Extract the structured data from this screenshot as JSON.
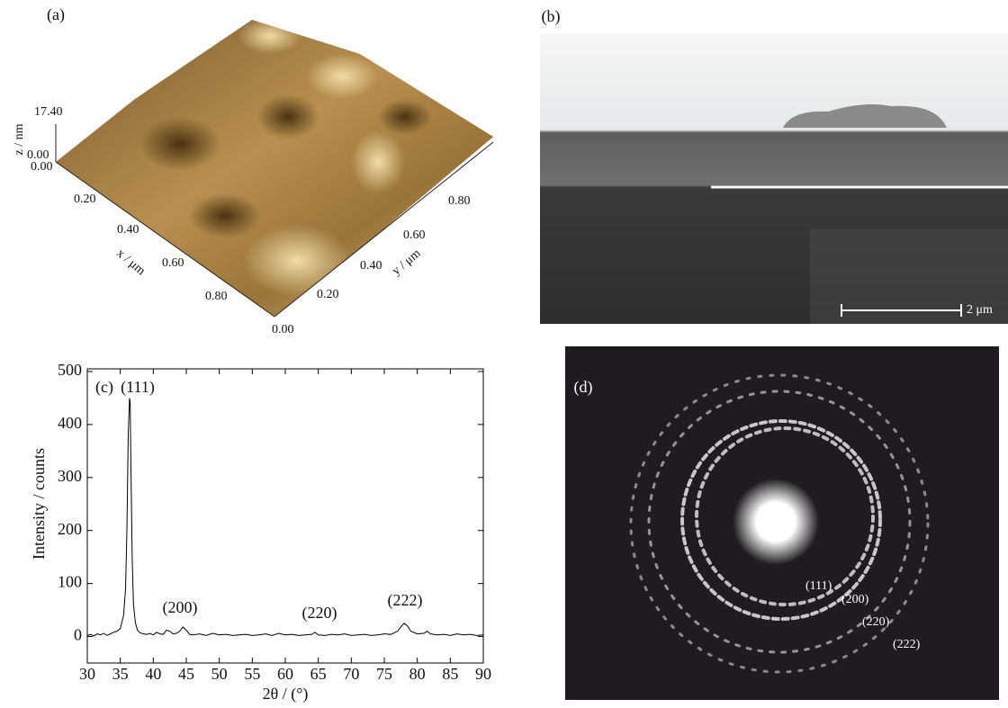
{
  "panel_a": {
    "label": "(a)",
    "z_axis": {
      "title": "z / nm",
      "ticks": [
        "17.40",
        "0.00"
      ]
    },
    "x_axis": {
      "title": "x / μm",
      "ticks": [
        "0.00",
        "0.20",
        "0.40",
        "0.60",
        "0.80"
      ]
    },
    "y_axis": {
      "title": "y / μm",
      "ticks": [
        "0.00",
        "0.20",
        "0.40",
        "0.60",
        "0.80"
      ]
    }
  },
  "panel_b": {
    "label": "(b)",
    "scale_bar": "2 μm"
  },
  "panel_d": {
    "label": "(d)",
    "rings": [
      "(111)",
      "(200)",
      "(220)",
      "(222)"
    ]
  },
  "chart_data": {
    "type": "line",
    "label": "(c)",
    "xlabel": "2θ / (°)",
    "ylabel": "Intensity / counts",
    "annotations": [
      "(111)",
      "(200)",
      "(220)",
      "(222)"
    ],
    "x": [
      30,
      30.5,
      31,
      31.5,
      32,
      32.5,
      33,
      33.5,
      34,
      34.5,
      35,
      35.5,
      35.8,
      36,
      36.2,
      36.4,
      36.5,
      36.6,
      36.8,
      37,
      37.3,
      37.6,
      38,
      38.5,
      39,
      39.5,
      40,
      40.5,
      41,
      41.5,
      42,
      42.5,
      43,
      43.5,
      44,
      44.5,
      45,
      45.5,
      46,
      47,
      48,
      49,
      50,
      51,
      52,
      53,
      54,
      55,
      56,
      57,
      58,
      59,
      60,
      61,
      62,
      63,
      64,
      64.5,
      65,
      66,
      67,
      68,
      69,
      70,
      71,
      72,
      73,
      74,
      75,
      76,
      77,
      77.5,
      78,
      78.5,
      79,
      80,
      81,
      81.5,
      82,
      83,
      84,
      85,
      86,
      87,
      88,
      89,
      90
    ],
    "values": [
      2,
      4,
      1,
      5,
      3,
      6,
      2,
      5,
      8,
      10,
      15,
      40,
      90,
      200,
      380,
      450,
      440,
      330,
      150,
      60,
      25,
      12,
      7,
      5,
      4,
      6,
      3,
      8,
      5,
      4,
      12,
      10,
      5,
      6,
      10,
      18,
      12,
      4,
      3,
      5,
      2,
      6,
      3,
      4,
      2,
      3,
      4,
      2,
      3,
      5,
      2,
      6,
      3,
      4,
      2,
      3,
      4,
      8,
      3,
      2,
      4,
      3,
      5,
      2,
      3,
      4,
      2,
      3,
      5,
      4,
      10,
      18,
      25,
      20,
      10,
      5,
      6,
      10,
      5,
      3,
      4,
      2,
      5,
      3,
      4,
      2,
      3
    ],
    "color": "#000000",
    "xlim": [
      30,
      90
    ],
    "ylim": [
      -50,
      505
    ],
    "xticks": [
      30,
      35,
      40,
      45,
      50,
      55,
      60,
      65,
      70,
      75,
      80,
      85,
      90
    ],
    "yticks": [
      0,
      100,
      200,
      300,
      400,
      500
    ]
  }
}
